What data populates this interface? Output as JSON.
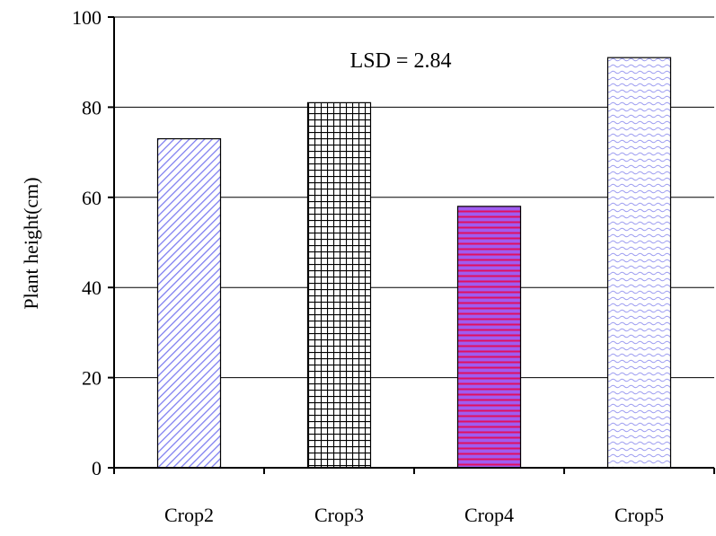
{
  "chart_data": {
    "type": "bar",
    "categories": [
      "Crop2",
      "Crop3",
      "Crop4",
      "Crop5"
    ],
    "values": [
      73,
      81,
      58,
      91
    ],
    "title": "",
    "xlabel": "",
    "ylabel": "Plant height(cm)",
    "ylim": [
      0,
      100
    ],
    "yticks": [
      0,
      20,
      40,
      60,
      80,
      100
    ],
    "grid": true,
    "legend": "none",
    "annotation": "LSD = 2.84",
    "bar_styles": [
      {
        "pattern": "diagonal-lines",
        "color": "#7b7bf0"
      },
      {
        "pattern": "grid-lines",
        "color": "#000000"
      },
      {
        "pattern": "horizontal-lines",
        "color": "#e01060",
        "background": "#a05cf0"
      },
      {
        "pattern": "wave-lines",
        "color": "#9b9bf0"
      }
    ]
  }
}
